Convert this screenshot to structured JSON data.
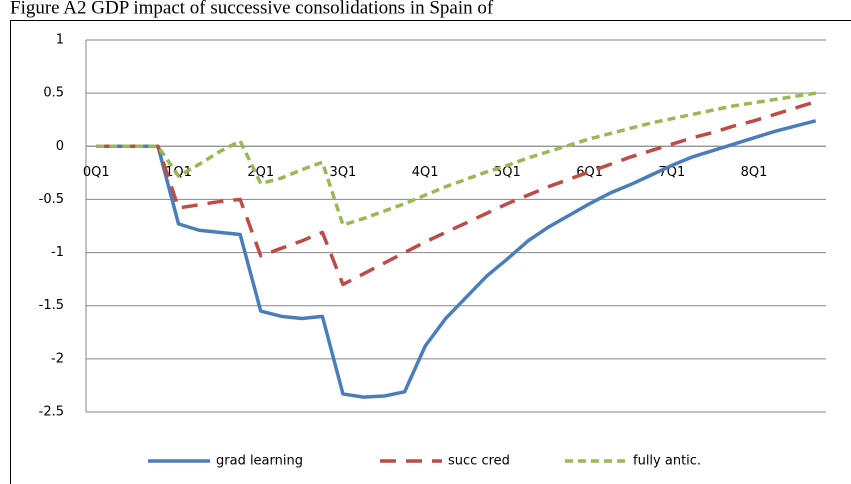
{
  "chart_data": {
    "type": "line",
    "title": "Figure A2 GDP impact of successive consolidations in Spain of",
    "categories": [
      "0Q1",
      null,
      null,
      null,
      "1Q1",
      null,
      null,
      null,
      "2Q1",
      null,
      null,
      null,
      "3Q1",
      null,
      null,
      null,
      "4Q1",
      null,
      null,
      null,
      "5Q1",
      null,
      null,
      null,
      "6Q1",
      null,
      null,
      null,
      "7Q1",
      null,
      null,
      null,
      "8Q1",
      null,
      null,
      null
    ],
    "series": [
      {
        "name": "grad learning",
        "color": "#4a7ebb",
        "values": [
          0,
          0,
          0,
          0,
          -0.73,
          -0.79,
          -0.81,
          -0.83,
          -1.55,
          -1.6,
          -1.62,
          -1.6,
          -2.33,
          -2.36,
          -2.35,
          -2.31,
          -1.88,
          -1.62,
          -1.42,
          -1.22,
          -1.06,
          -0.89,
          -0.76,
          -0.65,
          -0.54,
          -0.44,
          -0.36,
          -0.27,
          -0.18,
          -0.1,
          -0.04,
          0.02,
          0.08,
          0.14,
          0.19,
          0.24
        ]
      },
      {
        "name": "succ cred",
        "color": "#be4b48",
        "values": [
          0,
          0,
          0,
          0,
          -0.58,
          -0.55,
          -0.52,
          -0.5,
          -1.03,
          -0.96,
          -0.89,
          -0.81,
          -1.3,
          -1.2,
          -1.1,
          -1.0,
          -0.9,
          -0.81,
          -0.72,
          -0.63,
          -0.54,
          -0.46,
          -0.38,
          -0.31,
          -0.24,
          -0.17,
          -0.1,
          -0.04,
          0.02,
          0.08,
          0.13,
          0.19,
          0.24,
          0.3,
          0.36,
          0.42
        ]
      },
      {
        "name": "fully antic.",
        "color": "#98b954",
        "values": [
          0,
          0,
          0,
          0,
          -0.28,
          -0.17,
          -0.05,
          0.05,
          -0.35,
          -0.3,
          -0.22,
          -0.15,
          -0.74,
          -0.68,
          -0.61,
          -0.54,
          -0.46,
          -0.38,
          -0.31,
          -0.24,
          -0.18,
          -0.11,
          -0.05,
          0.01,
          0.07,
          0.12,
          0.17,
          0.22,
          0.26,
          0.3,
          0.34,
          0.38,
          0.41,
          0.44,
          0.47,
          0.5
        ]
      }
    ],
    "ylim": [
      -2.5,
      1
    ],
    "yticks": [
      -2.5,
      -2,
      -1.5,
      -1,
      -0.5,
      0,
      0.5,
      1
    ],
    "grid": true,
    "legend": "bottom"
  }
}
